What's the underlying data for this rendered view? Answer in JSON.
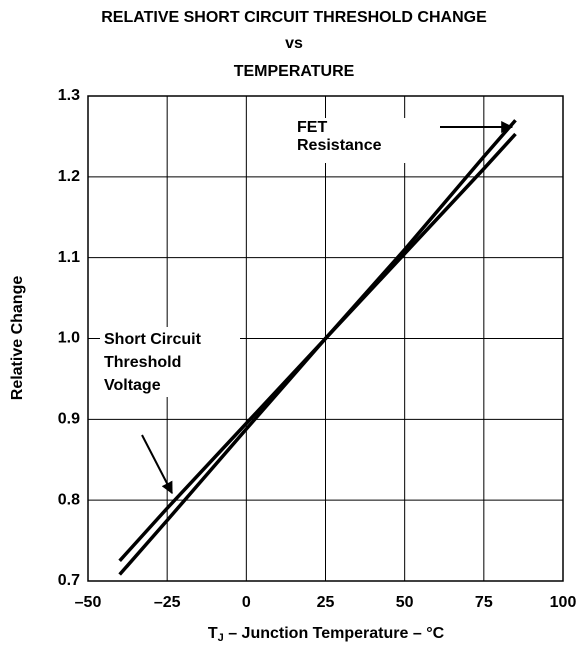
{
  "chart_data": {
    "type": "line",
    "title": [
      "RELATIVE SHORT CIRCUIT THRESHOLD CHANGE",
      "vs",
      "TEMPERATURE"
    ],
    "x_label": [
      "T",
      "J",
      " – Junction Temperature – °C"
    ],
    "y_label": "Relative Change",
    "x": [
      -40,
      -25,
      0,
      25,
      50,
      75,
      85
    ],
    "series": [
      {
        "color": "#000000",
        "values": [
          0.708,
          0.775,
          0.888,
          1.0,
          1.11,
          1.225,
          1.27
        ]
      },
      {
        "color": "#000000",
        "values": [
          0.725,
          0.79,
          0.895,
          1.0,
          1.105,
          1.21,
          1.253
        ]
      }
    ],
    "annotations": [
      {
        "text": [
          "FET",
          "Resistance"
        ]
      },
      {
        "text": [
          "Short Circuit",
          "Threshold",
          "Voltage"
        ]
      }
    ],
    "xlim": [
      -50,
      100
    ],
    "xticks": [
      {
        "value": -50,
        "label": "–50"
      },
      {
        "value": -25,
        "label": "–25"
      },
      0,
      25,
      50,
      75,
      100
    ],
    "ylim": [
      0.7,
      1.3
    ],
    "yticks": [
      0.7,
      0.8,
      0.9,
      {
        "value": 1,
        "label": "1.0"
      },
      1.1,
      1.2,
      1.3
    ],
    "grid": true
  }
}
